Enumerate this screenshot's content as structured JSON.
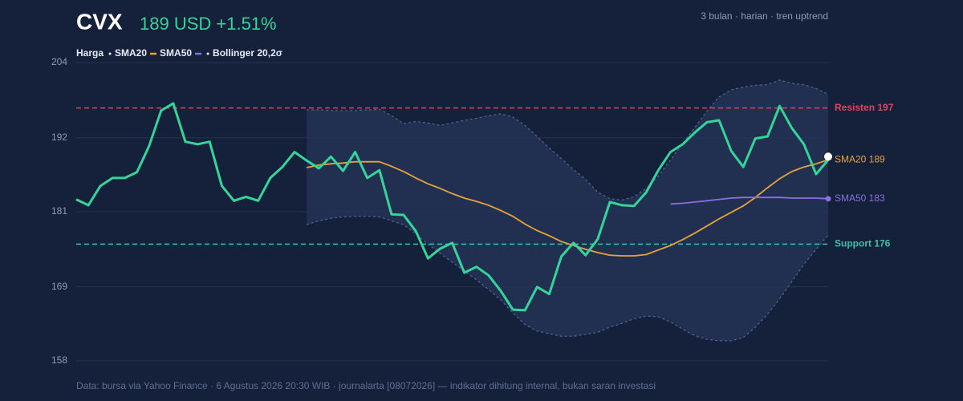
{
  "chart_data": {
    "type": "line",
    "title": "CVX",
    "subtitle": "189 USD +1.51%",
    "period_note": "3 bulan · harian · tren uptrend",
    "source": "Data: bursa via Yahoo Finance · 6 Agustus 2026 20:30 WIB · journalarta [08072026] — indikator dihitung internal, bukan saran investasi",
    "ylim": [
      158,
      204
    ],
    "yticks": [
      158,
      {
        "value": 169.4,
        "label": "169"
      },
      181,
      {
        "value": 192.4,
        "label": "192"
      },
      204
    ],
    "grid": true,
    "series": [
      {
        "name": "Harga",
        "color": "#35d49a",
        "values": [
          182.9,
          182.0,
          185.0,
          186.2,
          186.2,
          187.1,
          191.1,
          196.6,
          197.7,
          191.8,
          191.4,
          191.8,
          185.0,
          182.7,
          183.3,
          182.7,
          186.2,
          187.9,
          190.2,
          188.9,
          187.7,
          189.5,
          187.3,
          190.2,
          186.2,
          187.4,
          180.6,
          180.5,
          178.0,
          173.8,
          175.3,
          176.2,
          171.6,
          172.5,
          171.2,
          168.8,
          165.9,
          165.8,
          169.4,
          168.3,
          174.1,
          176.2,
          174.3,
          176.8,
          182.5,
          182.0,
          181.9,
          184.0,
          187.4,
          190.2,
          191.4,
          193.2,
          194.8,
          195.1,
          190.4,
          187.9,
          192.3,
          192.6,
          197.3,
          193.9,
          191.4,
          186.8,
          189.0
        ]
      },
      {
        "name": "SMA20",
        "color": "#e8a23a",
        "end_label": "SMA20 189",
        "values": [
          null,
          null,
          null,
          null,
          null,
          null,
          null,
          null,
          null,
          null,
          null,
          null,
          null,
          null,
          null,
          null,
          null,
          null,
          null,
          187.8,
          188.2,
          188.4,
          188.5,
          188.7,
          188.7,
          188.7,
          188.0,
          187.2,
          186.2,
          185.3,
          184.6,
          183.8,
          183.1,
          182.6,
          182.0,
          181.2,
          180.3,
          179.1,
          178.1,
          177.3,
          176.4,
          175.8,
          175.2,
          174.7,
          174.3,
          174.2,
          174.2,
          174.4,
          175.1,
          175.8,
          176.7,
          177.7,
          178.8,
          179.9,
          180.9,
          181.9,
          183.2,
          184.7,
          186.1,
          187.2,
          187.9,
          188.4,
          189.0
        ]
      },
      {
        "name": "SMA50",
        "color": "#8a6fe0",
        "end_label": "SMA50 183",
        "values": [
          null,
          null,
          null,
          null,
          null,
          null,
          null,
          null,
          null,
          null,
          null,
          null,
          null,
          null,
          null,
          null,
          null,
          null,
          null,
          null,
          null,
          null,
          null,
          null,
          null,
          null,
          null,
          null,
          null,
          null,
          null,
          null,
          null,
          null,
          null,
          null,
          null,
          null,
          null,
          null,
          null,
          null,
          null,
          null,
          null,
          null,
          null,
          null,
          null,
          182.2,
          182.3,
          182.5,
          182.7,
          182.9,
          183.1,
          183.2,
          183.2,
          183.2,
          183.2,
          183.1,
          183.1,
          183.1,
          183.0
        ]
      },
      {
        "name": "Bollinger 20,2σ",
        "color": "#4f6491",
        "upper": [
          null,
          null,
          null,
          null,
          null,
          null,
          null,
          null,
          null,
          null,
          null,
          null,
          null,
          null,
          null,
          null,
          null,
          null,
          null,
          196.7,
          196.7,
          196.6,
          196.6,
          196.6,
          196.7,
          196.8,
          195.8,
          194.6,
          194.9,
          194.7,
          194.3,
          194.7,
          195.1,
          195.4,
          195.8,
          196.1,
          195.6,
          194.3,
          192.6,
          190.8,
          189.2,
          187.5,
          186.0,
          184.0,
          183.0,
          182.8,
          183.3,
          184.6,
          186.5,
          189.0,
          191.5,
          194.0,
          196.5,
          198.7,
          199.8,
          200.2,
          200.5,
          200.6,
          201.3,
          200.8,
          200.6,
          200.0,
          199.1
        ],
        "lower": [
          null,
          null,
          null,
          null,
          null,
          null,
          null,
          null,
          null,
          null,
          null,
          null,
          null,
          null,
          null,
          null,
          null,
          null,
          null,
          179.0,
          179.6,
          180.0,
          180.2,
          180.3,
          180.3,
          180.2,
          179.6,
          179.0,
          177.6,
          176.0,
          174.6,
          173.2,
          171.9,
          170.5,
          169.0,
          167.4,
          165.4,
          163.6,
          162.6,
          162.2,
          161.8,
          161.8,
          162.1,
          162.4,
          163.2,
          163.8,
          164.5,
          164.9,
          164.8,
          164.0,
          162.9,
          161.9,
          161.3,
          161.1,
          161.1,
          161.6,
          163.2,
          165.2,
          167.6,
          170.2,
          172.9,
          175.2,
          177.4
        ]
      }
    ],
    "reference_lines": [
      {
        "label": "Resisten 197",
        "value": 197,
        "color": "#e0435e"
      },
      {
        "label": "Support 176",
        "value": 176,
        "color": "#3bbfa6"
      }
    ]
  }
}
